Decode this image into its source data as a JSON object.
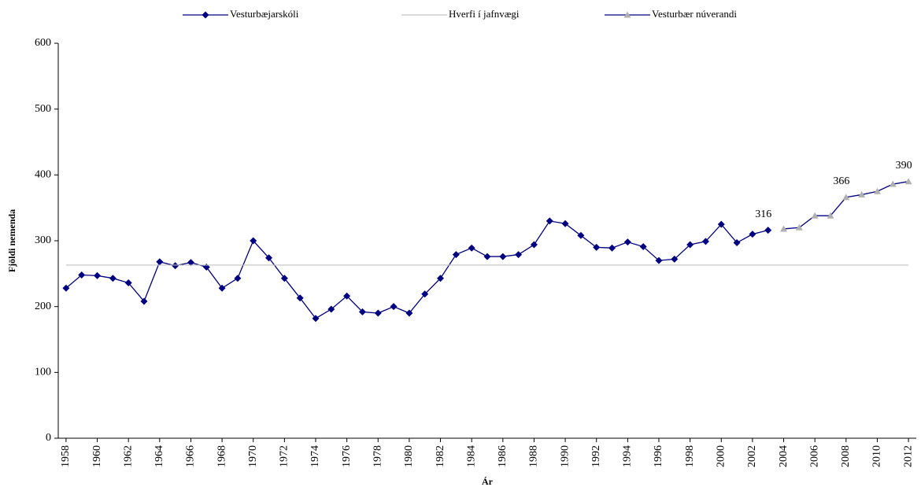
{
  "chart_data": {
    "type": "line",
    "x_label": "Ár",
    "y_label": "Fjöldi nemenda",
    "x": [
      1958,
      1959,
      1960,
      1961,
      1962,
      1963,
      1964,
      1965,
      1966,
      1967,
      1968,
      1969,
      1970,
      1971,
      1972,
      1973,
      1974,
      1975,
      1976,
      1977,
      1978,
      1979,
      1980,
      1981,
      1982,
      1983,
      1984,
      1985,
      1986,
      1987,
      1988,
      1989,
      1990,
      1991,
      1992,
      1993,
      1994,
      1995,
      1996,
      1997,
      1998,
      1999,
      2000,
      2001,
      2002,
      2003,
      2004,
      2005,
      2006,
      2007,
      2008,
      2009,
      2010,
      2011,
      2012
    ],
    "series": [
      {
        "name": "Vesturbæjarskóli",
        "color": "#000080",
        "marker": "diamond",
        "marker_color": "#000080",
        "labeled_years": [
          2003
        ],
        "values": [
          228,
          248,
          247,
          243,
          236,
          208,
          268,
          262,
          267,
          260,
          228,
          243,
          300,
          274,
          243,
          213,
          182,
          196,
          216,
          192,
          190,
          200,
          190,
          219,
          243,
          279,
          289,
          276,
          276,
          279,
          294,
          330,
          326,
          308,
          290,
          289,
          298,
          291,
          270,
          272,
          294,
          299,
          325,
          297,
          310,
          316,
          null,
          null,
          null,
          null,
          null,
          null,
          null,
          null,
          null
        ]
      },
      {
        "name": "Hverfi í jafnvægi",
        "color": "#c0c0c0",
        "marker": "none",
        "values": [
          263,
          263,
          263,
          263,
          263,
          263,
          263,
          263,
          263,
          263,
          263,
          263,
          263,
          263,
          263,
          263,
          263,
          263,
          263,
          263,
          263,
          263,
          263,
          263,
          263,
          263,
          263,
          263,
          263,
          263,
          263,
          263,
          263,
          263,
          263,
          263,
          263,
          263,
          263,
          263,
          263,
          263,
          263,
          263,
          263,
          263,
          263,
          263,
          263,
          263,
          263,
          263,
          263,
          263,
          263
        ]
      },
      {
        "name": "Vesturbær núverandi",
        "color": "#000080",
        "marker": "triangle",
        "marker_color": "#b0b0b0",
        "labeled_years": [
          2008,
          2012
        ],
        "values": [
          null,
          null,
          null,
          null,
          null,
          null,
          null,
          null,
          null,
          null,
          null,
          null,
          null,
          null,
          null,
          null,
          null,
          null,
          null,
          null,
          null,
          null,
          null,
          null,
          null,
          null,
          null,
          null,
          null,
          null,
          null,
          null,
          null,
          null,
          null,
          null,
          null,
          null,
          null,
          null,
          null,
          null,
          null,
          null,
          null,
          null,
          318,
          320,
          338,
          338,
          366,
          370,
          375,
          386,
          390
        ]
      }
    ],
    "xlim": [
      1957.5,
      2012.5
    ],
    "xticks": [
      1958,
      1960,
      1962,
      1964,
      1966,
      1968,
      1970,
      1972,
      1974,
      1976,
      1978,
      1980,
      1982,
      1984,
      1986,
      1988,
      1990,
      1992,
      1994,
      1996,
      1998,
      2000,
      2002,
      2004,
      2006,
      2008,
      2010,
      2012
    ],
    "ylim": [
      0,
      600
    ],
    "yticks": [
      0,
      100,
      200,
      300,
      400,
      500,
      600
    ],
    "grid": false,
    "legend": "top"
  }
}
